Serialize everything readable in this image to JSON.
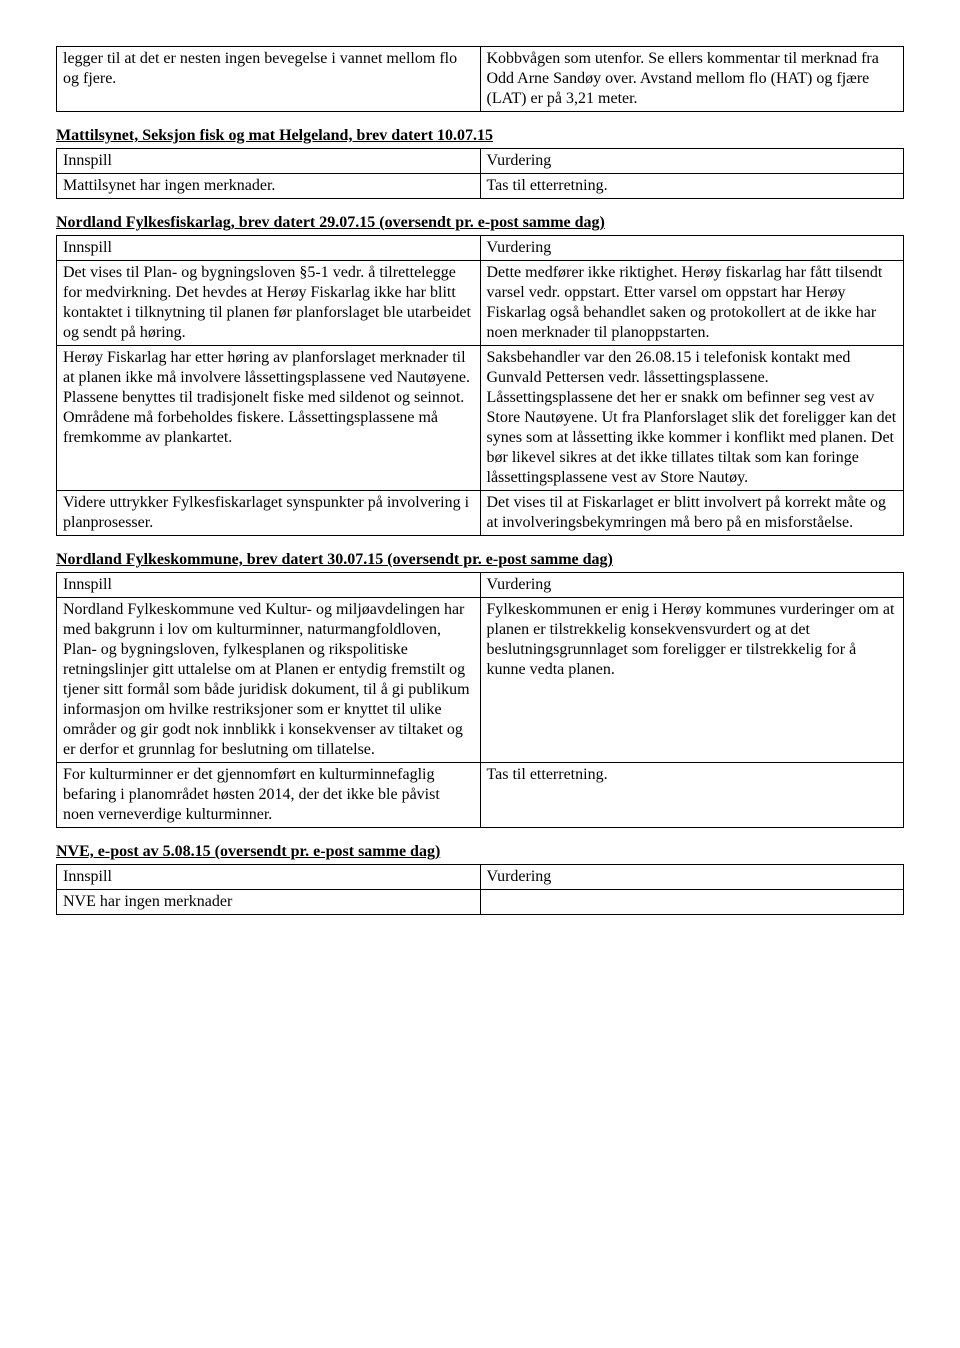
{
  "table0": {
    "rows": [
      {
        "c1": "legger til at det er nesten ingen bevegelse i vannet mellom flo og fjere.",
        "c2": "Kobbvågen som utenfor. Se ellers kommentar til merknad fra Odd Arne Sandøy over. Avstand mellom flo (HAT) og fjære (LAT) er på 3,21 meter."
      }
    ]
  },
  "section1": {
    "heading": "Mattilsynet, Seksjon fisk og mat Helgeland, brev datert 10.07.15",
    "header": {
      "c1": "Innspill",
      "c2": "Vurdering"
    },
    "rows": [
      {
        "c1": "Mattilsynet har ingen merknader.",
        "c2": "Tas til etterretning."
      }
    ]
  },
  "section2": {
    "heading": "Nordland Fylkesfiskarlag, brev datert 29.07.15 (oversendt pr. e-post samme dag)",
    "header": {
      "c1": "Innspill",
      "c2": "Vurdering"
    },
    "rows": [
      {
        "c1": "Det vises til Plan- og bygningsloven §5-1 vedr. å tilrettelegge for medvirkning. Det hevdes at Herøy Fiskarlag ikke har blitt kontaktet i tilknytning til planen før planforslaget ble utarbeidet og sendt på høring.",
        "c2": "Dette medfører ikke riktighet. Herøy fiskarlag har fått tilsendt varsel vedr. oppstart. Etter varsel om oppstart har Herøy Fiskarlag også behandlet saken og protokollert at de ikke har noen merknader til planoppstarten."
      },
      {
        "c1": "Herøy Fiskarlag har etter høring av planforslaget merknader til at planen ikke må involvere låssettingsplassene ved Nautøyene. Plassene benyttes til tradisjonelt fiske med sildenot og seinnot. Områdene må forbeholdes fiskere. Låssettingsplassene må fremkomme av plankartet.",
        "c2": "Saksbehandler var den 26.08.15 i telefonisk kontakt med Gunvald Pettersen vedr. låssettingsplassene. Låssettingsplassene det her er snakk om befinner seg vest av Store Nautøyene. Ut fra Planforslaget slik det foreligger kan det synes som at låssetting ikke kommer i konflikt med planen. Det bør likevel sikres at det ikke tillates tiltak som kan foringe låssettingsplassene vest av Store Nautøy."
      },
      {
        "c1": "Videre uttrykker Fylkesfiskarlaget synspunkter på involvering i planprosesser.",
        "c2": "Det vises til at Fiskarlaget er blitt involvert på korrekt måte og at involveringsbekymringen må bero på en misforståelse."
      }
    ]
  },
  "section3": {
    "heading": "Nordland Fylkeskommune, brev datert 30.07.15 (oversendt pr. e-post samme dag)",
    "header": {
      "c1": "Innspill",
      "c2": "Vurdering"
    },
    "rows": [
      {
        "c1": "Nordland Fylkeskommune ved Kultur- og miljøavdelingen har med bakgrunn i lov om kulturminner, naturmangfoldloven, Plan- og bygningsloven, fylkesplanen og rikspolitiske retningslinjer gitt uttalelse om at Planen er entydig fremstilt og tjener sitt formål som både juridisk dokument, til å gi publikum informasjon om hvilke restriksjoner som er knyttet til ulike områder og gir godt nok innblikk i konsekvenser av tiltaket og er derfor et grunnlag for beslutning om tillatelse.",
        "c2": "Fylkeskommunen er enig i Herøy kommunes vurderinger om at planen er tilstrekkelig konsekvensvurdert og at det beslutningsgrunnlaget som foreligger er tilstrekkelig for å kunne vedta planen."
      },
      {
        "c1": "For kulturminner er det gjennomført en kulturminnefaglig befaring i planområdet høsten 2014, der det ikke ble påvist noen verneverdige kulturminner.",
        "c2": "Tas til etterretning."
      }
    ]
  },
  "section4": {
    "heading": "NVE, e-post av 5.08.15 (oversendt pr. e-post samme dag)",
    "header": {
      "c1": "Innspill",
      "c2": "Vurdering"
    },
    "rows": [
      {
        "c1": "NVE har ingen merknader",
        "c2": ""
      }
    ]
  }
}
